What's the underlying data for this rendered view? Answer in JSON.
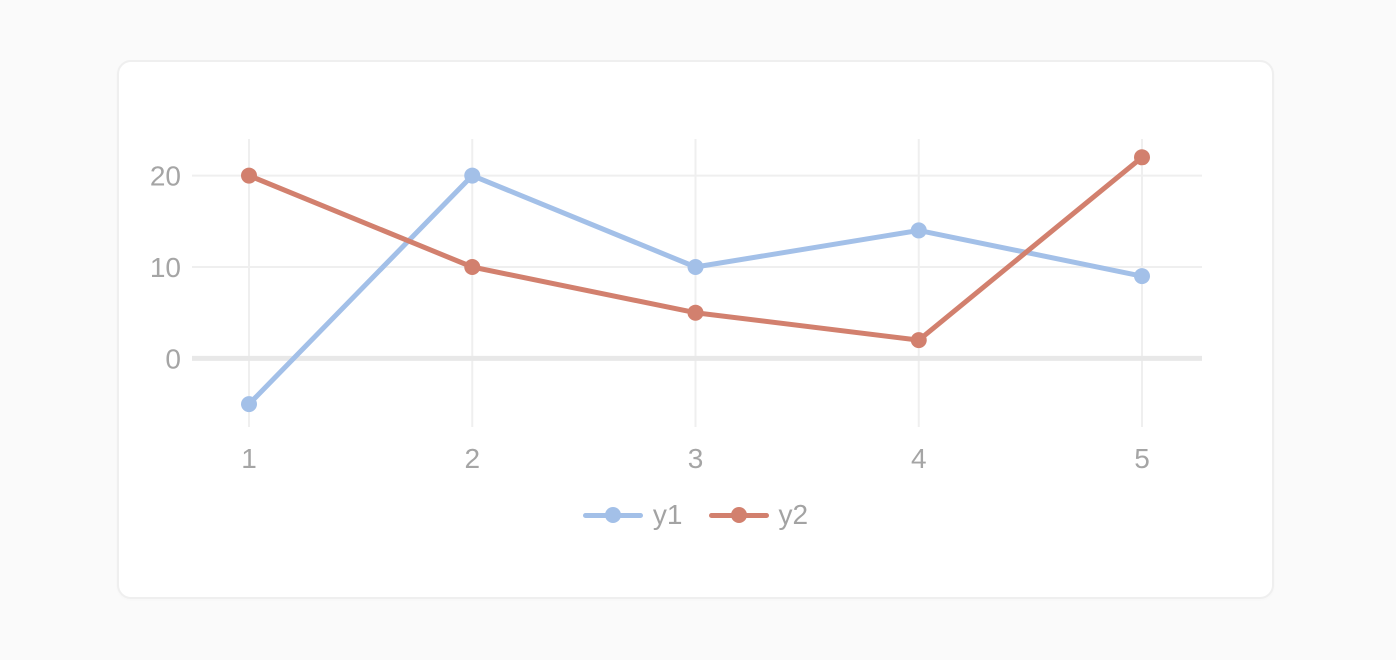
{
  "page": {
    "background": "#fafafa"
  },
  "card": {
    "background": "#ffffff",
    "border_color": "#efefef"
  },
  "chart_data": {
    "type": "line",
    "x": [
      1,
      2,
      3,
      4,
      5
    ],
    "x_tick_labels": [
      "1",
      "2",
      "3",
      "4",
      "5"
    ],
    "y_ticks": [
      20,
      10,
      0
    ],
    "y_tick_labels": [
      "20",
      "10",
      "0"
    ],
    "series": [
      {
        "name": "y1",
        "color": "#a3c0e8",
        "values": [
          -5,
          20,
          10,
          14,
          9
        ],
        "marker": "circle"
      },
      {
        "name": "y2",
        "color": "#d2806e",
        "values": [
          20,
          10,
          5,
          2,
          22
        ],
        "marker": "circle"
      }
    ],
    "ylim": [
      -7.5,
      24.0
    ],
    "grid": true,
    "legend_position": "bottom",
    "title": "",
    "xlabel": "",
    "ylabel": "",
    "axis_label_color": "#a5a5a5",
    "grid_color": "#efefef",
    "zero_line_color": "#e8e8e8"
  }
}
